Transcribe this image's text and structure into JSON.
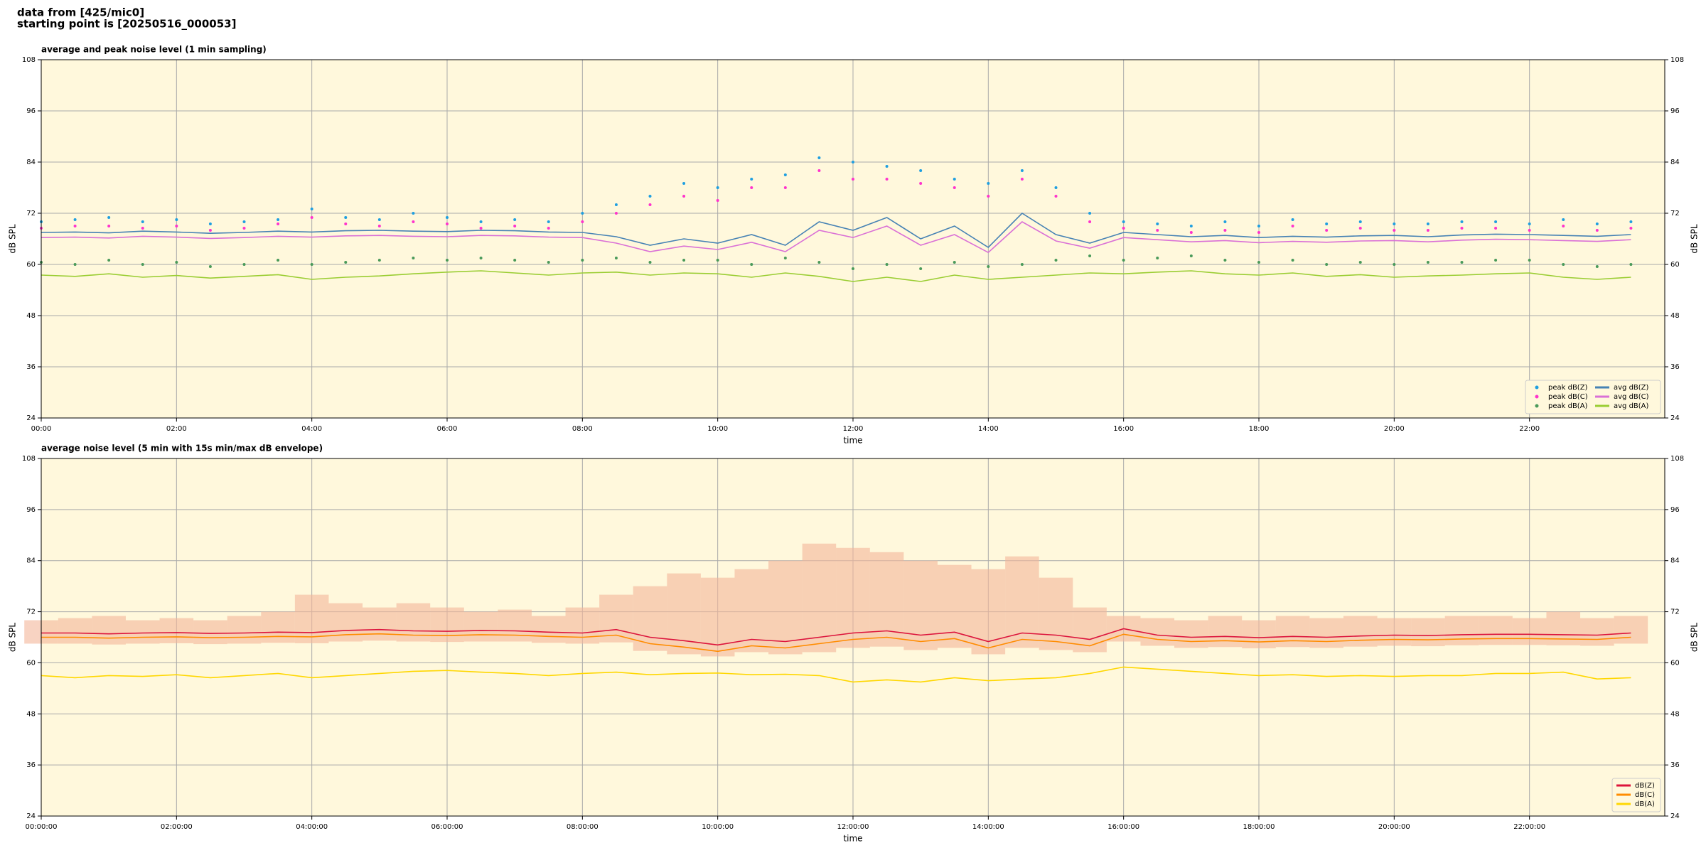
{
  "figure_title": [
    "data from [425/mic0]",
    "starting point is [20250516_000053]"
  ],
  "chart_data": [
    {
      "type": "line",
      "title": "average and peak noise level (1 min sampling)",
      "xlabel": "time",
      "ylabel": "dB SPL",
      "xlim": [
        0,
        24
      ],
      "ylim": [
        24,
        108
      ],
      "xticks": [
        {
          "value": 0,
          "label": "00:00"
        },
        {
          "value": 2,
          "label": "02:00"
        },
        {
          "value": 4,
          "label": "04:00"
        },
        {
          "value": 6,
          "label": "06:00"
        },
        {
          "value": 8,
          "label": "08:00"
        },
        {
          "value": 10,
          "label": "10:00"
        },
        {
          "value": 12,
          "label": "12:00"
        },
        {
          "value": 14,
          "label": "14:00"
        },
        {
          "value": 16,
          "label": "16:00"
        },
        {
          "value": 18,
          "label": "18:00"
        },
        {
          "value": 20,
          "label": "20:00"
        },
        {
          "value": 22,
          "label": "22:00"
        }
      ],
      "yticks": [
        24,
        36,
        48,
        60,
        72,
        84,
        96,
        108
      ],
      "grid": true,
      "legend": {
        "loc": "lower right",
        "ncol": 2
      },
      "x": [
        0,
        0.5,
        1,
        1.5,
        2,
        2.5,
        3,
        3.5,
        4,
        4.5,
        5,
        5.5,
        6,
        6.5,
        7,
        7.5,
        8,
        8.5,
        9,
        9.5,
        10,
        10.5,
        11,
        11.5,
        12,
        12.5,
        13,
        13.5,
        14,
        14.5,
        15,
        15.5,
        16,
        16.5,
        17,
        17.5,
        18,
        18.5,
        19,
        19.5,
        20,
        20.5,
        21,
        21.5,
        22,
        22.5,
        23,
        23.5
      ],
      "series": [
        {
          "name": "peak dB(Z)",
          "type": "scatter",
          "color": "#1f9fe0",
          "values": [
            70,
            70.5,
            71,
            70,
            70.5,
            69.5,
            70,
            70.5,
            73,
            71,
            70.5,
            72,
            71,
            70,
            70.5,
            70,
            72,
            74,
            76,
            79,
            78,
            80,
            81,
            85,
            84,
            83,
            82,
            80,
            79,
            82,
            78,
            72,
            70,
            69.5,
            69,
            70,
            69,
            70.5,
            69.5,
            70,
            69.5,
            69.5,
            70,
            70,
            69.5,
            70.5,
            69.5,
            70
          ]
        },
        {
          "name": "peak dB(C)",
          "type": "scatter",
          "color": "#ff33cc",
          "values": [
            68.5,
            69,
            69,
            68.5,
            69,
            68,
            68.5,
            69.5,
            71,
            69.5,
            69,
            70,
            69.5,
            68.5,
            69,
            68.5,
            70,
            72,
            74,
            76,
            75,
            78,
            78,
            82,
            80,
            80,
            79,
            78,
            76,
            80,
            76,
            70,
            68.5,
            68,
            67.5,
            68,
            67.5,
            69,
            68,
            68.5,
            68,
            68,
            68.5,
            68.5,
            68,
            69,
            68,
            68.5
          ]
        },
        {
          "name": "peak dB(A)",
          "type": "scatter",
          "color": "#4a9a5a",
          "values": [
            60.5,
            60,
            61,
            60,
            60.5,
            59.5,
            60,
            61,
            60,
            60.5,
            61,
            61.5,
            61,
            61.5,
            61,
            60.5,
            61,
            61.5,
            60.5,
            61,
            61,
            60,
            61.5,
            60.5,
            59,
            60,
            59,
            60.5,
            59.5,
            60,
            61,
            62,
            61,
            61.5,
            62,
            61,
            60.5,
            61,
            60,
            60.5,
            60,
            60.5,
            60.5,
            61,
            61,
            60,
            59.5,
            60
          ]
        },
        {
          "name": "avg dB(Z)",
          "type": "line",
          "color": "#4682b4",
          "values": [
            67.5,
            67.6,
            67.4,
            67.8,
            67.6,
            67.3,
            67.5,
            67.8,
            67.6,
            67.9,
            68,
            67.8,
            67.7,
            68,
            67.9,
            67.6,
            67.5,
            66.5,
            64.5,
            66,
            65,
            67,
            64.5,
            70,
            68,
            71,
            66,
            69,
            64,
            72,
            67,
            65,
            67.5,
            67,
            66.5,
            66.8,
            66.3,
            66.6,
            66.4,
            66.7,
            66.8,
            66.5,
            66.9,
            67.1,
            67,
            66.8,
            66.6,
            67
          ]
        },
        {
          "name": "avg dB(C)",
          "type": "line",
          "color": "#da70d6",
          "values": [
            66.3,
            66.4,
            66.2,
            66.6,
            66.4,
            66.1,
            66.3,
            66.6,
            66.4,
            66.7,
            66.8,
            66.6,
            66.5,
            66.8,
            66.7,
            66.4,
            66.3,
            65,
            63,
            64.3,
            63.5,
            65.2,
            63,
            68,
            66.3,
            69,
            64.5,
            67,
            62.8,
            70,
            65.5,
            63.8,
            66.3,
            65.8,
            65.3,
            65.6,
            65.1,
            65.4,
            65.2,
            65.5,
            65.6,
            65.3,
            65.7,
            65.9,
            65.8,
            65.6,
            65.4,
            65.8
          ]
        },
        {
          "name": "avg dB(A)",
          "type": "line",
          "color": "#9acd32",
          "values": [
            57.5,
            57.2,
            57.8,
            57,
            57.4,
            56.8,
            57.2,
            57.6,
            56.5,
            57,
            57.3,
            57.8,
            58.2,
            58.5,
            58,
            57.5,
            58,
            58.2,
            57.5,
            58,
            57.8,
            57,
            58,
            57.2,
            56,
            57,
            56,
            57.5,
            56.5,
            57,
            57.5,
            58,
            57.8,
            58.2,
            58.5,
            57.8,
            57.5,
            58,
            57.2,
            57.6,
            57,
            57.3,
            57.5,
            57.8,
            58,
            57,
            56.5,
            57
          ]
        }
      ]
    },
    {
      "type": "line",
      "title": "average noise level (5 min with 15s min/max dB envelope)",
      "xlabel": "time",
      "ylabel": "dB SPL",
      "xlim": [
        0,
        24
      ],
      "ylim": [
        24,
        108
      ],
      "xticks": [
        {
          "value": 0,
          "label": "00:00:00"
        },
        {
          "value": 2,
          "label": "02:00:00"
        },
        {
          "value": 4,
          "label": "04:00:00"
        },
        {
          "value": 6,
          "label": "06:00:00"
        },
        {
          "value": 8,
          "label": "08:00:00"
        },
        {
          "value": 10,
          "label": "10:00:00"
        },
        {
          "value": 12,
          "label": "12:00:00"
        },
        {
          "value": 14,
          "label": "14:00:00"
        },
        {
          "value": 16,
          "label": "16:00:00"
        },
        {
          "value": 18,
          "label": "18:00:00"
        },
        {
          "value": 20,
          "label": "20:00:00"
        },
        {
          "value": 22,
          "label": "22:00:00"
        }
      ],
      "yticks": [
        24,
        36,
        48,
        60,
        72,
        84,
        96,
        108
      ],
      "grid": true,
      "legend": {
        "loc": "lower right",
        "ncol": 1
      },
      "x": [
        0,
        0.5,
        1,
        1.5,
        2,
        2.5,
        3,
        3.5,
        4,
        4.5,
        5,
        5.5,
        6,
        6.5,
        7,
        7.5,
        8,
        8.5,
        9,
        9.5,
        10,
        10.5,
        11,
        11.5,
        12,
        12.5,
        13,
        13.5,
        14,
        14.5,
        15,
        15.5,
        16,
        16.5,
        17,
        17.5,
        18,
        18.5,
        19,
        19.5,
        20,
        20.5,
        21,
        21.5,
        22,
        22.5,
        23,
        23.5
      ],
      "envelope": {
        "color": "#f4b69a",
        "lower": [
          64.5,
          64.5,
          64.3,
          64.5,
          64.6,
          64.4,
          64.5,
          64.7,
          64.6,
          65,
          65.2,
          65,
          64.9,
          65,
          65,
          64.7,
          64.5,
          64.8,
          62.8,
          62,
          61.5,
          62.5,
          62,
          62.5,
          63.5,
          63.8,
          63,
          63.5,
          62,
          63.5,
          63,
          62.5,
          65,
          64,
          63.5,
          63.7,
          63.4,
          63.7,
          63.5,
          63.8,
          64,
          63.9,
          64.1,
          64.2,
          64.2,
          64.1,
          64,
          64.5
        ],
        "upper": [
          70,
          70.5,
          71,
          70,
          70.5,
          70,
          71,
          72,
          76,
          74,
          73,
          74,
          73,
          72,
          72.5,
          71,
          73,
          76,
          78,
          81,
          80,
          82,
          84,
          88,
          87,
          86,
          84,
          83,
          82,
          85,
          80,
          73,
          71,
          70.5,
          70,
          71,
          70,
          71,
          70.5,
          71,
          70.5,
          70.5,
          71,
          71,
          70.5,
          72,
          70.5,
          71
        ]
      },
      "series": [
        {
          "name": "dB(Z)",
          "type": "line",
          "color": "#dc143c",
          "values": [
            67,
            67,
            66.8,
            67,
            67.1,
            66.9,
            67,
            67.2,
            67.1,
            67.6,
            67.8,
            67.5,
            67.4,
            67.6,
            67.5,
            67.2,
            67,
            67.8,
            66,
            65.2,
            64.2,
            65.5,
            65,
            66,
            67,
            67.5,
            66.5,
            67.2,
            65,
            67,
            66.5,
            65.5,
            68,
            66.5,
            66,
            66.2,
            65.9,
            66.2,
            66,
            66.3,
            66.5,
            66.4,
            66.6,
            66.7,
            66.7,
            66.6,
            66.5,
            67
          ]
        },
        {
          "name": "dB(C)",
          "type": "line",
          "color": "#ff8c00",
          "values": [
            66,
            66,
            65.8,
            66,
            66.1,
            65.9,
            66,
            66.2,
            66.1,
            66.6,
            66.8,
            66.5,
            66.4,
            66.6,
            66.5,
            66.2,
            66,
            66.5,
            64.5,
            63.7,
            62.7,
            64,
            63.5,
            64.5,
            65.5,
            66,
            65,
            65.7,
            63.5,
            65.5,
            65,
            64,
            66.7,
            65.5,
            65,
            65.2,
            64.9,
            65.2,
            65,
            65.3,
            65.5,
            65.4,
            65.6,
            65.7,
            65.7,
            65.6,
            65.5,
            66
          ]
        },
        {
          "name": "dB(A)",
          "type": "line",
          "color": "#ffd700",
          "values": [
            57,
            56.5,
            57,
            56.8,
            57.2,
            56.5,
            57,
            57.5,
            56.5,
            57,
            57.5,
            58,
            58.2,
            57.8,
            57.5,
            57,
            57.5,
            57.8,
            57.2,
            57.5,
            57.6,
            57.2,
            57.3,
            57,
            55.5,
            56,
            55.5,
            56.5,
            55.8,
            56.2,
            56.5,
            57.5,
            59,
            58.5,
            58,
            57.5,
            57,
            57.2,
            56.8,
            57,
            56.8,
            57,
            57,
            57.5,
            57.5,
            57.8,
            56.2,
            56.5
          ]
        }
      ]
    }
  ]
}
